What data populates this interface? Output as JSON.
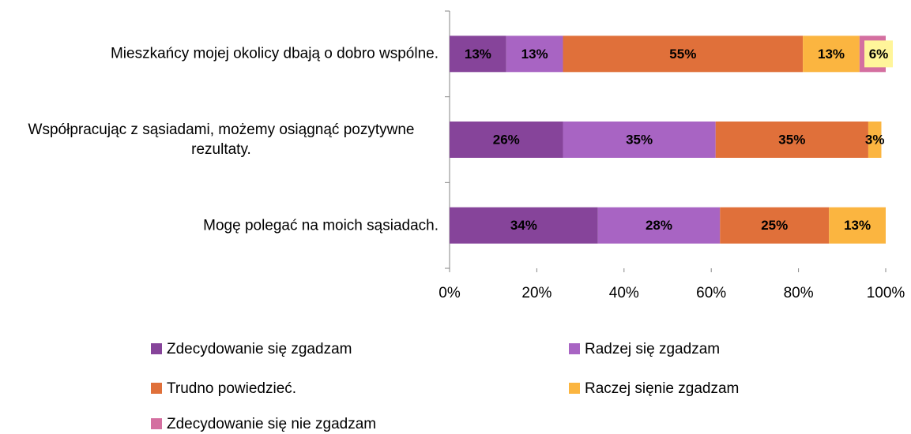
{
  "chart_data": {
    "type": "stacked-bar-horizontal",
    "categories": [
      "Mieszkańcy mojej okolicy dbają o dobro wspólne.",
      "Współpracując z sąsiadami, możemy osiągnąć pozytywne rezultaty.",
      "Mogę polegać na moich sąsiadach."
    ],
    "series": [
      {
        "name": "Zdecydowanie się zgadzam",
        "color": "#86449a",
        "values": [
          13,
          26,
          34
        ],
        "value_labels": [
          "13%",
          "26%",
          "34%"
        ],
        "label_colors": [
          "#ffffff",
          "#ffffff",
          "#ffffff"
        ]
      },
      {
        "name": "Radzej się zgadzam",
        "color": "#a864c3",
        "values": [
          13,
          35,
          28
        ],
        "value_labels": [
          "13%",
          "35%",
          "28%"
        ],
        "label_colors": [
          "#000000",
          "#ffffff",
          "#000000"
        ]
      },
      {
        "name": "Trudno powiedzieć.",
        "color": "#e0703a",
        "values": [
          55,
          35,
          25
        ],
        "value_labels": [
          "55%",
          "35%",
          "25%"
        ],
        "label_colors": [
          "#000000",
          "#000000",
          "#000000"
        ]
      },
      {
        "name": "Raczej sięnie zgadzam",
        "color": "#fbb540",
        "values": [
          13,
          3,
          13
        ],
        "value_labels": [
          "13%",
          "3%",
          "13%"
        ],
        "label_colors": [
          "#ffffff",
          "#ffffff",
          "#ffffff"
        ]
      },
      {
        "name": "Zdecydowanie się nie zgadzam",
        "color": "#d46fa0",
        "values": [
          6,
          null,
          null
        ],
        "value_labels": [
          "6%",
          null,
          null
        ],
        "label_colors": [
          "#000000",
          null,
          null
        ]
      }
    ],
    "xlim": [
      0,
      100
    ],
    "xticks": [
      {
        "value": 0,
        "label": "0%"
      },
      {
        "value": 20,
        "label": "20%"
      },
      {
        "value": 40,
        "label": "40%"
      },
      {
        "value": 60,
        "label": "60%"
      },
      {
        "value": 80,
        "label": "80%"
      },
      {
        "value": 100,
        "label": "100%"
      }
    ],
    "legend": "bottom"
  }
}
